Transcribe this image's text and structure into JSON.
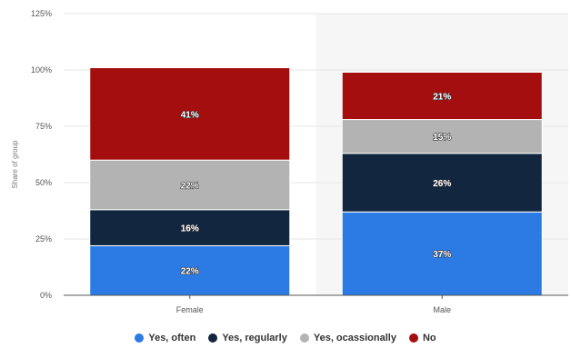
{
  "chart_data": {
    "type": "bar",
    "stacked": true,
    "categories": [
      "Female",
      "Male"
    ],
    "series": [
      {
        "name": "Yes, often",
        "values": [
          22,
          37
        ],
        "labels": [
          "22%",
          "37%"
        ],
        "color": "#2c7be5"
      },
      {
        "name": "Yes, regularly",
        "values": [
          16,
          26
        ],
        "labels": [
          "16%",
          "26%"
        ],
        "color": "#12263f"
      },
      {
        "name": "Yes, ocassionally",
        "values": [
          22,
          15
        ],
        "labels": [
          "22%",
          "15%"
        ],
        "color": "#b3b3b3"
      },
      {
        "name": "No",
        "values": [
          41,
          21
        ],
        "labels": [
          "41%",
          "21%"
        ],
        "color": "#a50e0e"
      }
    ],
    "title": "",
    "xlabel": "",
    "ylabel": "Share of group",
    "ylim": [
      0,
      125
    ],
    "yticks": [
      0,
      25,
      50,
      75,
      100,
      125
    ],
    "ytick_labels": [
      "0%",
      "25%",
      "50%",
      "75%",
      "100%",
      "125%"
    ],
    "grid": true,
    "legend": "bottom",
    "highlighted_category": "Male",
    "highlight_color": "#f6f6f6"
  }
}
